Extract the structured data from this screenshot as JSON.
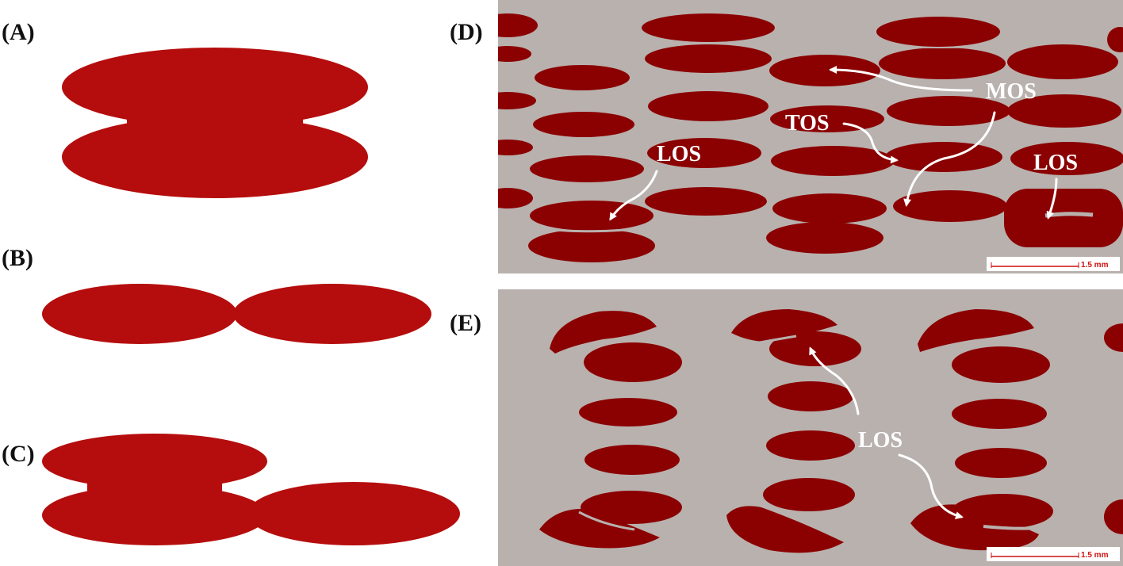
{
  "panels": {
    "a": {
      "label": "(A)"
    },
    "b": {
      "label": "(B)"
    },
    "c": {
      "label": "(C)"
    },
    "d": {
      "label": "(D)"
    },
    "e": {
      "label": "(E)"
    }
  },
  "annotations": {
    "d_mos": "MOS",
    "d_tos": "TOS",
    "d_los_left": "LOS",
    "d_los_right": "LOS",
    "e_los": "LOS"
  },
  "scale_bar": {
    "d": "1.5 mm",
    "e": "1.5 mm"
  },
  "colors": {
    "schematic_fill": "#b50d0d",
    "micrograph_fill": "#8b0000",
    "micrograph_background": "#b8b1ae",
    "annotation": "#ffffff"
  }
}
